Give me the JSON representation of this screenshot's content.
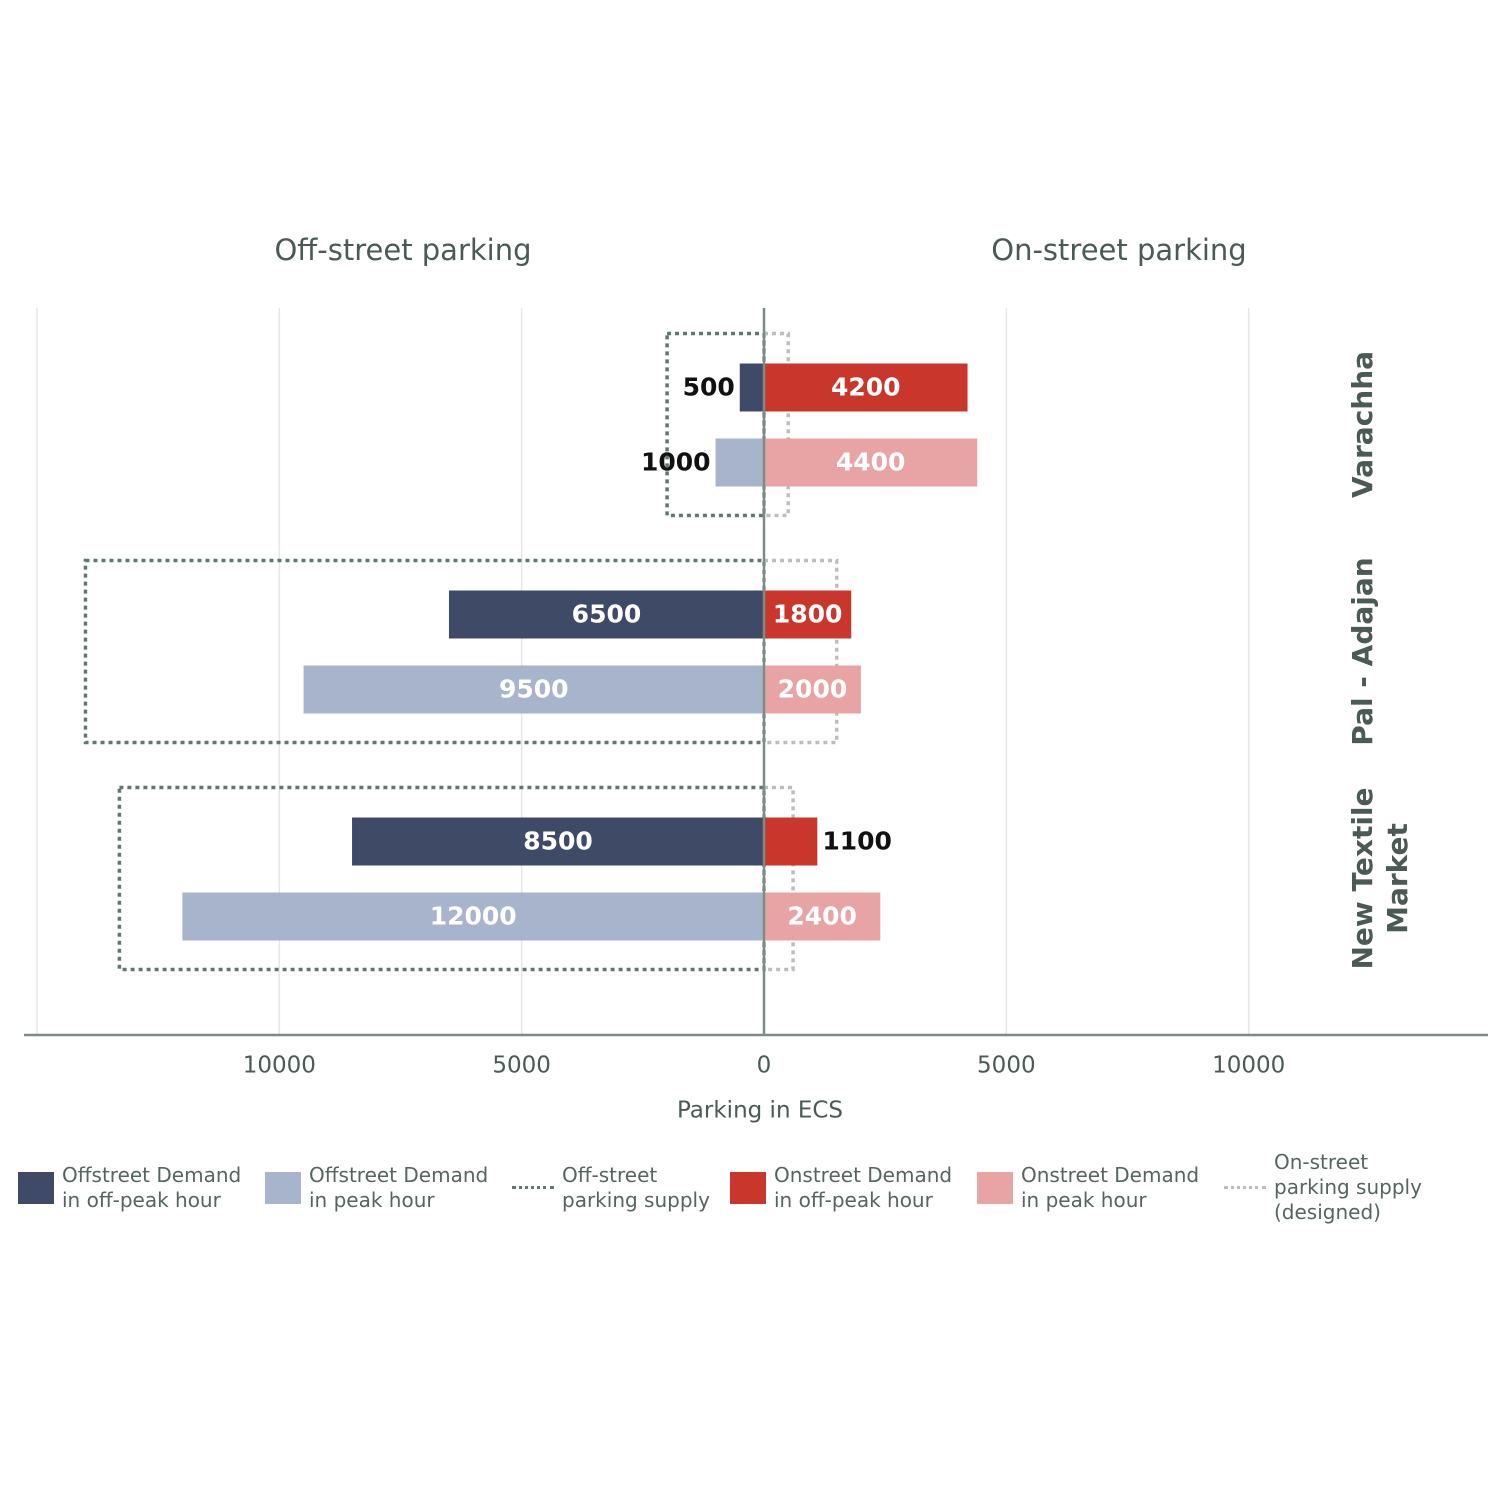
{
  "chart_data": {
    "type": "bar",
    "orientation": "horizontal",
    "panel_titles": [
      "Off-street parking",
      "On-street parking"
    ],
    "x_label": "Parking in ECS",
    "categories": [
      "Varachha",
      "Pal - Adajan",
      "New Textile Market"
    ],
    "xlim": [
      -15000,
      15000
    ],
    "xticks": [
      {
        "value": -10000,
        "label": "10000"
      },
      {
        "value": -5000,
        "label": "5000"
      },
      0,
      5000,
      10000
    ],
    "grid": true,
    "legend": "bottom",
    "series": [
      {
        "name": "Offstreet Demand in off-peak hour",
        "color": "#3f4a66",
        "side": "left",
        "kind": "bar",
        "slot": "upper",
        "values": [
          500,
          6500,
          8500
        ]
      },
      {
        "name": "Offstreet Demand in peak hour",
        "color": "#a7b4cb",
        "side": "left",
        "kind": "bar",
        "slot": "lower",
        "values": [
          1000,
          9500,
          12000
        ]
      },
      {
        "name": "Off-street parking supply",
        "color": "#62786f",
        "side": "left",
        "kind": "supply",
        "values": [
          2000,
          14000,
          13300
        ]
      },
      {
        "name": "Onstreet Demand in off-peak hour",
        "color": "#c9372c",
        "side": "right",
        "kind": "bar",
        "slot": "upper",
        "values": [
          4200,
          1800,
          1100
        ]
      },
      {
        "name": "Onstreet Demand in peak hour",
        "color": "#e8a4a4",
        "side": "right",
        "kind": "bar",
        "slot": "lower",
        "values": [
          4400,
          2000,
          2400
        ]
      },
      {
        "name": "On-street parking supply (designed)",
        "color": "#bdbdbd",
        "side": "right",
        "kind": "supply",
        "values": [
          500,
          1500,
          600
        ]
      }
    ]
  }
}
